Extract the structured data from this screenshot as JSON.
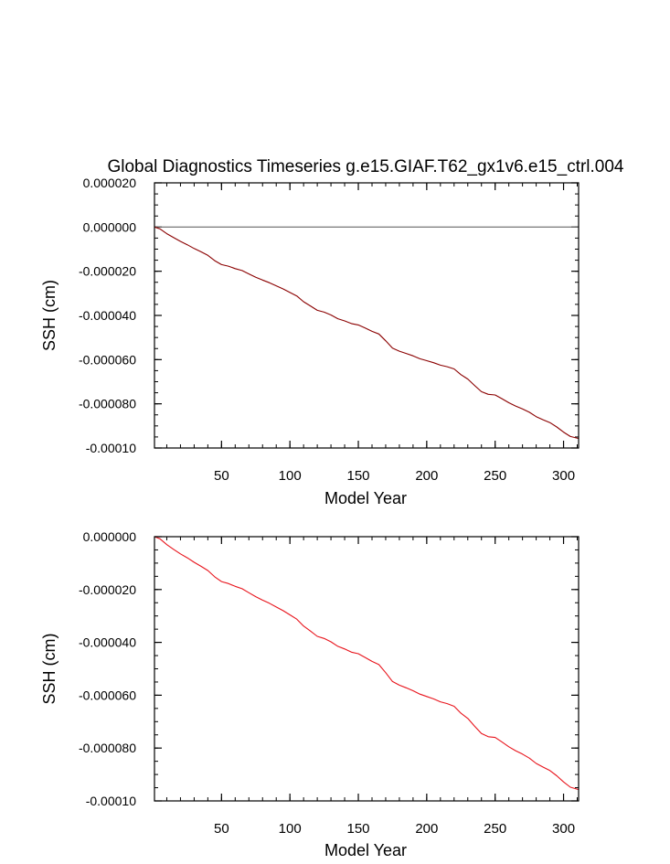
{
  "title": "Global Diagnostics Timeseries g.e15.GIAF.T62_gx1v6.e15_ctrl.004",
  "chart_data": [
    {
      "type": "line",
      "name": "top-panel",
      "xlabel": "Model Year",
      "ylabel": "SSH (cm)",
      "xlim": [
        1,
        311
      ],
      "ylim": [
        -0.0001,
        2e-05
      ],
      "x_ticks": [
        50,
        100,
        150,
        200,
        250,
        300
      ],
      "x_tick_labels": [
        "50",
        "100",
        "150",
        "200",
        "250",
        "300"
      ],
      "y_ticks": [
        2e-05,
        0.0,
        -2e-05,
        -4e-05,
        -6e-05,
        -8e-05,
        -0.0001
      ],
      "y_tick_labels": [
        "0.000020",
        "0.000000",
        "-0.000020",
        "-0.000040",
        "-0.000060",
        "-0.000080",
        "-0.00010"
      ],
      "reference_line": 0.0,
      "line_color": "#8b0000",
      "series": [
        {
          "name": "SSH",
          "x": [
            1,
            5,
            10,
            15,
            20,
            25,
            30,
            35,
            40,
            45,
            50,
            55,
            60,
            65,
            70,
            75,
            80,
            85,
            90,
            95,
            100,
            105,
            110,
            115,
            120,
            125,
            130,
            135,
            140,
            145,
            150,
            155,
            160,
            165,
            170,
            175,
            180,
            185,
            190,
            195,
            200,
            205,
            210,
            215,
            220,
            225,
            230,
            235,
            240,
            245,
            250,
            255,
            260,
            265,
            270,
            275,
            280,
            285,
            290,
            295,
            300,
            305,
            311
          ],
          "y": [
            0.0,
            -8e-07,
            -3e-06,
            -4.8e-06,
            -6.5e-06,
            -8e-06,
            -9.7e-06,
            -1.12e-05,
            -1.28e-05,
            -1.52e-05,
            -1.7e-05,
            -1.77e-05,
            -1.88e-05,
            -1.97e-05,
            -2.12e-05,
            -2.27e-05,
            -2.4e-05,
            -2.52e-05,
            -2.66e-05,
            -2.8e-05,
            -2.96e-05,
            -3.12e-05,
            -3.38e-05,
            -3.57e-05,
            -3.77e-05,
            -3.85e-05,
            -3.98e-05,
            -4.15e-05,
            -4.25e-05,
            -4.37e-05,
            -4.43e-05,
            -4.57e-05,
            -4.72e-05,
            -4.84e-05,
            -5.15e-05,
            -5.48e-05,
            -5.62e-05,
            -5.72e-05,
            -5.83e-05,
            -5.96e-05,
            -6.05e-05,
            -6.14e-05,
            -6.25e-05,
            -6.32e-05,
            -6.42e-05,
            -6.68e-05,
            -6.88e-05,
            -7.17e-05,
            -7.45e-05,
            -7.57e-05,
            -7.6e-05,
            -7.77e-05,
            -7.95e-05,
            -8.1e-05,
            -8.23e-05,
            -8.38e-05,
            -8.58e-05,
            -8.72e-05,
            -8.85e-05,
            -9.05e-05,
            -9.28e-05,
            -9.48e-05,
            -9.57e-05
          ]
        }
      ]
    },
    {
      "type": "line",
      "name": "bottom-panel",
      "xlabel": "Model Year",
      "ylabel": "SSH (cm)",
      "xlim": [
        1,
        311
      ],
      "ylim": [
        -0.0001,
        0.0
      ],
      "x_ticks": [
        50,
        100,
        150,
        200,
        250,
        300
      ],
      "x_tick_labels": [
        "50",
        "100",
        "150",
        "200",
        "250",
        "300"
      ],
      "y_ticks": [
        0.0,
        -2e-05,
        -4e-05,
        -6e-05,
        -8e-05,
        -0.0001
      ],
      "y_tick_labels": [
        "0.000000",
        "-0.000020",
        "-0.000040",
        "-0.000060",
        "-0.000080",
        "-0.00010"
      ],
      "line_color": "#e8141c",
      "series": [
        {
          "name": "SSH",
          "x": [
            1,
            5,
            10,
            15,
            20,
            25,
            30,
            35,
            40,
            45,
            50,
            55,
            60,
            65,
            70,
            75,
            80,
            85,
            90,
            95,
            100,
            105,
            110,
            115,
            120,
            125,
            130,
            135,
            140,
            145,
            150,
            155,
            160,
            165,
            170,
            175,
            180,
            185,
            190,
            195,
            200,
            205,
            210,
            215,
            220,
            225,
            230,
            235,
            240,
            245,
            250,
            255,
            260,
            265,
            270,
            275,
            280,
            285,
            290,
            295,
            300,
            305,
            311
          ],
          "y": [
            0.0,
            -8e-07,
            -3e-06,
            -4.8e-06,
            -6.5e-06,
            -8e-06,
            -9.7e-06,
            -1.12e-05,
            -1.28e-05,
            -1.52e-05,
            -1.7e-05,
            -1.77e-05,
            -1.88e-05,
            -1.97e-05,
            -2.12e-05,
            -2.27e-05,
            -2.4e-05,
            -2.52e-05,
            -2.66e-05,
            -2.8e-05,
            -2.96e-05,
            -3.12e-05,
            -3.38e-05,
            -3.57e-05,
            -3.77e-05,
            -3.85e-05,
            -3.98e-05,
            -4.15e-05,
            -4.25e-05,
            -4.37e-05,
            -4.43e-05,
            -4.57e-05,
            -4.72e-05,
            -4.84e-05,
            -5.15e-05,
            -5.48e-05,
            -5.62e-05,
            -5.72e-05,
            -5.83e-05,
            -5.96e-05,
            -6.05e-05,
            -6.14e-05,
            -6.25e-05,
            -6.32e-05,
            -6.42e-05,
            -6.68e-05,
            -6.88e-05,
            -7.17e-05,
            -7.45e-05,
            -7.57e-05,
            -7.6e-05,
            -7.77e-05,
            -7.95e-05,
            -8.1e-05,
            -8.23e-05,
            -8.38e-05,
            -8.58e-05,
            -8.72e-05,
            -8.85e-05,
            -9.05e-05,
            -9.28e-05,
            -9.48e-05,
            -9.57e-05
          ]
        }
      ]
    }
  ]
}
